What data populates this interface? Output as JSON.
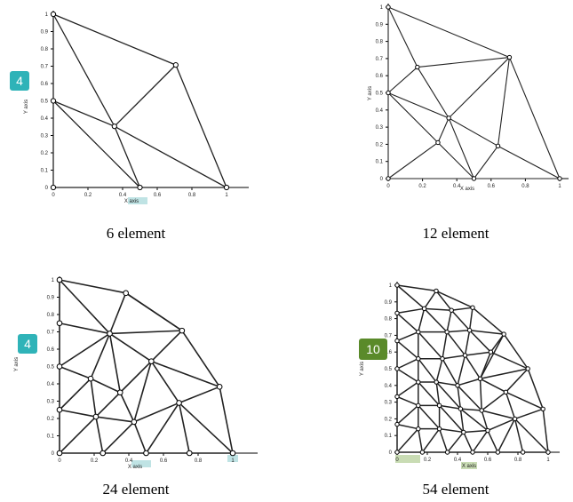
{
  "panels": [
    {
      "id": "p6",
      "caption": "6 element",
      "ticks": [
        "0",
        "0.2",
        "0.4",
        "0.6",
        "0.8",
        "1"
      ],
      "yticks": [
        "0",
        "0.1",
        "0.2",
        "0.3",
        "0.4",
        "0.5",
        "0.6",
        "0.7",
        "0.8",
        "0.9",
        "1"
      ],
      "xlabel": "X axis",
      "ylabel": "Y axis",
      "badge": "4",
      "nodes": [
        [
          0,
          0
        ],
        [
          0.5,
          0
        ],
        [
          1,
          0
        ],
        [
          0,
          0.5
        ],
        [
          0.353,
          0.353
        ],
        [
          0.707,
          0.707
        ],
        [
          0,
          1
        ]
      ],
      "edges": [
        [
          0,
          3
        ],
        [
          3,
          6
        ],
        [
          0,
          1
        ],
        [
          1,
          2
        ],
        [
          3,
          1
        ],
        [
          3,
          4
        ],
        [
          4,
          2
        ],
        [
          6,
          4
        ],
        [
          4,
          5
        ],
        [
          6,
          5
        ],
        [
          5,
          2
        ],
        [
          4,
          1
        ]
      ]
    },
    {
      "id": "p12",
      "caption": "12 element",
      "ticks": [
        "0",
        "0.2",
        "0.4",
        "0.6",
        "0.8",
        "1"
      ],
      "yticks": [
        "0",
        "0.1",
        "0.2",
        "0.3",
        "0.4",
        "0.5",
        "0.6",
        "0.7",
        "0.8",
        "0.9",
        "1"
      ],
      "xlabel": "X axis",
      "ylabel": "Y axis",
      "nodes": [
        [
          0,
          0
        ],
        [
          0.5,
          0
        ],
        [
          1,
          0
        ],
        [
          0,
          0.5
        ],
        [
          0.353,
          0.353
        ],
        [
          0.707,
          0.707
        ],
        [
          0,
          1
        ],
        [
          0.29,
          0.21
        ],
        [
          0.64,
          0.19
        ],
        [
          0.17,
          0.65
        ]
      ],
      "edges": [
        [
          0,
          3
        ],
        [
          3,
          6
        ],
        [
          0,
          1
        ],
        [
          1,
          2
        ],
        [
          0,
          7
        ],
        [
          7,
          1
        ],
        [
          7,
          4
        ],
        [
          3,
          4
        ],
        [
          3,
          7
        ],
        [
          1,
          8
        ],
        [
          8,
          2
        ],
        [
          8,
          5
        ],
        [
          8,
          4
        ],
        [
          1,
          4
        ],
        [
          4,
          5
        ],
        [
          5,
          2
        ],
        [
          6,
          9
        ],
        [
          9,
          3
        ],
        [
          9,
          5
        ],
        [
          9,
          4
        ],
        [
          6,
          5
        ]
      ]
    },
    {
      "id": "p24",
      "caption": "24 element",
      "ticks": [
        "0",
        "0.2",
        "0.4",
        "0.6",
        "0.8",
        "1"
      ],
      "yticks": [
        "0",
        "0.1",
        "0.2",
        "0.3",
        "0.4",
        "0.5",
        "0.6",
        "0.7",
        "0.8",
        "0.9",
        "1"
      ],
      "xlabel": "X axis",
      "ylabel": "Y axis",
      "badge": "4",
      "nodes": [
        [
          0,
          0
        ],
        [
          0.25,
          0
        ],
        [
          0.5,
          0
        ],
        [
          0.75,
          0
        ],
        [
          1,
          0
        ],
        [
          0,
          0.25
        ],
        [
          0,
          0.5
        ],
        [
          0,
          0.75
        ],
        [
          0,
          1
        ],
        [
          0.383,
          0.924
        ],
        [
          0.707,
          0.707
        ],
        [
          0.924,
          0.383
        ],
        [
          0.21,
          0.21
        ],
        [
          0.43,
          0.18
        ],
        [
          0.69,
          0.29
        ],
        [
          0.18,
          0.43
        ],
        [
          0.35,
          0.35
        ],
        [
          0.53,
          0.53
        ],
        [
          0.29,
          0.69
        ]
      ],
      "edges": [
        [
          0,
          5
        ],
        [
          5,
          6
        ],
        [
          6,
          7
        ],
        [
          7,
          8
        ],
        [
          0,
          1
        ],
        [
          1,
          2
        ],
        [
          2,
          3
        ],
        [
          3,
          4
        ],
        [
          8,
          9
        ],
        [
          9,
          10
        ],
        [
          10,
          11
        ],
        [
          11,
          4
        ],
        [
          0,
          12
        ],
        [
          5,
          12
        ],
        [
          12,
          1
        ],
        [
          12,
          13
        ],
        [
          1,
          13
        ],
        [
          13,
          2
        ],
        [
          13,
          14
        ],
        [
          2,
          14
        ],
        [
          14,
          3
        ],
        [
          14,
          4
        ],
        [
          14,
          11
        ],
        [
          5,
          15
        ],
        [
          15,
          6
        ],
        [
          15,
          12
        ],
        [
          15,
          16
        ],
        [
          12,
          16
        ],
        [
          16,
          13
        ],
        [
          16,
          17
        ],
        [
          13,
          17
        ],
        [
          17,
          14
        ],
        [
          17,
          11
        ],
        [
          17,
          10
        ],
        [
          6,
          18
        ],
        [
          7,
          18
        ],
        [
          18,
          15
        ],
        [
          18,
          16
        ],
        [
          18,
          17
        ],
        [
          18,
          9
        ],
        [
          18,
          10
        ],
        [
          8,
          18
        ],
        [
          9,
          10
        ]
      ]
    },
    {
      "id": "p54",
      "caption": "54 element",
      "ticks": [
        "0",
        "0.2",
        "0.4",
        "0.6",
        "0.8",
        "1"
      ],
      "yticks": [
        "0",
        "0.1",
        "0.2",
        "0.3",
        "0.4",
        "0.5",
        "0.6",
        "0.7",
        "0.8",
        "0.9",
        "1"
      ],
      "xlabel": "X axis",
      "ylabel": "Y axis",
      "badge": "10",
      "nodes": [
        [
          0,
          0
        ],
        [
          0.167,
          0
        ],
        [
          0.333,
          0
        ],
        [
          0.5,
          0
        ],
        [
          0.667,
          0
        ],
        [
          0.833,
          0
        ],
        [
          1,
          0
        ],
        [
          0,
          0.167
        ],
        [
          0,
          0.333
        ],
        [
          0,
          0.5
        ],
        [
          0,
          0.667
        ],
        [
          0,
          0.833
        ],
        [
          0,
          1
        ],
        [
          0.259,
          0.966
        ],
        [
          0.5,
          0.866
        ],
        [
          0.707,
          0.707
        ],
        [
          0.866,
          0.5
        ],
        [
          0.966,
          0.259
        ],
        [
          0.14,
          0.14
        ],
        [
          0.28,
          0.14
        ],
        [
          0.44,
          0.12
        ],
        [
          0.6,
          0.13
        ],
        [
          0.78,
          0.2
        ],
        [
          0.14,
          0.28
        ],
        [
          0.28,
          0.28
        ],
        [
          0.42,
          0.26
        ],
        [
          0.56,
          0.25
        ],
        [
          0.72,
          0.36
        ],
        [
          0.14,
          0.42
        ],
        [
          0.26,
          0.42
        ],
        [
          0.4,
          0.4
        ],
        [
          0.55,
          0.44
        ],
        [
          0.14,
          0.56
        ],
        [
          0.3,
          0.56
        ],
        [
          0.45,
          0.58
        ],
        [
          0.62,
          0.6
        ],
        [
          0.14,
          0.72
        ],
        [
          0.33,
          0.72
        ],
        [
          0.48,
          0.73
        ],
        [
          0.18,
          0.86
        ],
        [
          0.36,
          0.85
        ]
      ],
      "edges": [
        [
          0,
          7
        ],
        [
          7,
          8
        ],
        [
          8,
          9
        ],
        [
          9,
          10
        ],
        [
          10,
          11
        ],
        [
          11,
          12
        ],
        [
          0,
          1
        ],
        [
          1,
          2
        ],
        [
          2,
          3
        ],
        [
          3,
          4
        ],
        [
          4,
          5
        ],
        [
          5,
          6
        ],
        [
          12,
          13
        ],
        [
          13,
          14
        ],
        [
          14,
          15
        ],
        [
          15,
          16
        ],
        [
          16,
          17
        ],
        [
          17,
          6
        ],
        [
          0,
          18
        ],
        [
          7,
          18
        ],
        [
          18,
          1
        ],
        [
          18,
          19
        ],
        [
          1,
          19
        ],
        [
          19,
          2
        ],
        [
          19,
          20
        ],
        [
          2,
          20
        ],
        [
          20,
          3
        ],
        [
          20,
          21
        ],
        [
          3,
          21
        ],
        [
          21,
          4
        ],
        [
          21,
          22
        ],
        [
          4,
          22
        ],
        [
          22,
          5
        ],
        [
          22,
          6
        ],
        [
          22,
          17
        ],
        [
          7,
          23
        ],
        [
          8,
          23
        ],
        [
          23,
          18
        ],
        [
          23,
          19
        ],
        [
          23,
          24
        ],
        [
          19,
          24
        ],
        [
          24,
          20
        ],
        [
          24,
          25
        ],
        [
          20,
          25
        ],
        [
          25,
          21
        ],
        [
          25,
          26
        ],
        [
          21,
          26
        ],
        [
          26,
          22
        ],
        [
          26,
          27
        ],
        [
          22,
          27
        ],
        [
          27,
          17
        ],
        [
          27,
          16
        ],
        [
          8,
          28
        ],
        [
          9,
          28
        ],
        [
          28,
          23
        ],
        [
          28,
          24
        ],
        [
          28,
          29
        ],
        [
          24,
          29
        ],
        [
          29,
          25
        ],
        [
          29,
          30
        ],
        [
          25,
          30
        ],
        [
          30,
          26
        ],
        [
          30,
          31
        ],
        [
          26,
          31
        ],
        [
          31,
          27
        ],
        [
          31,
          16
        ],
        [
          31,
          15
        ],
        [
          9,
          32
        ],
        [
          10,
          32
        ],
        [
          32,
          28
        ],
        [
          32,
          29
        ],
        [
          32,
          33
        ],
        [
          29,
          33
        ],
        [
          33,
          30
        ],
        [
          33,
          34
        ],
        [
          30,
          34
        ],
        [
          34,
          31
        ],
        [
          34,
          35
        ],
        [
          31,
          35
        ],
        [
          35,
          15
        ],
        [
          35,
          16
        ],
        [
          10,
          36
        ],
        [
          11,
          36
        ],
        [
          36,
          32
        ],
        [
          36,
          33
        ],
        [
          36,
          37
        ],
        [
          33,
          37
        ],
        [
          37,
          34
        ],
        [
          37,
          38
        ],
        [
          34,
          38
        ],
        [
          38,
          35
        ],
        [
          38,
          15
        ],
        [
          38,
          14
        ],
        [
          11,
          39
        ],
        [
          12,
          39
        ],
        [
          39,
          36
        ],
        [
          39,
          37
        ],
        [
          39,
          40
        ],
        [
          37,
          40
        ],
        [
          40,
          38
        ],
        [
          40,
          14
        ],
        [
          40,
          13
        ],
        [
          39,
          13
        ]
      ]
    }
  ],
  "colors": {
    "teal": "#2fb3b8",
    "olive": "#5a8a2a",
    "highlight": "#bfe3e4",
    "olive_light": "#c9dcb4"
  }
}
